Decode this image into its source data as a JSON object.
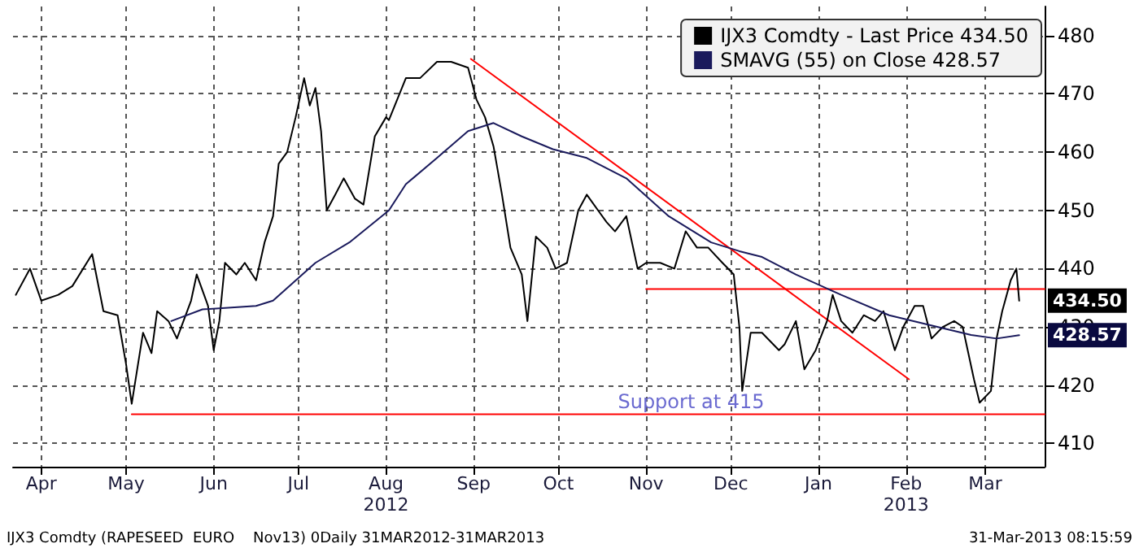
{
  "chart_data": {
    "type": "line",
    "xlim": [
      "2012-04-06",
      "2013-04-06"
    ],
    "xticks": [
      {
        "value": "2012-04-16",
        "label": "Apr"
      },
      {
        "value": "2012-05-16",
        "label": "May"
      },
      {
        "value": "2012-06-16",
        "label": "Jun"
      },
      {
        "value": "2012-07-16",
        "label": "Jul"
      },
      {
        "value": "2012-08-16",
        "label": "Aug\n2012"
      },
      {
        "value": "2012-09-16",
        "label": "Sep"
      },
      {
        "value": "2012-10-16",
        "label": "Oct"
      },
      {
        "value": "2012-11-16",
        "label": "Nov"
      },
      {
        "value": "2012-12-16",
        "label": "Dec"
      },
      {
        "value": "2013-01-16",
        "label": "Jan"
      },
      {
        "value": "2013-02-16",
        "label": "Feb\n2013"
      },
      {
        "value": "2013-03-16",
        "label": "Mar"
      }
    ],
    "ylim": [
      406,
      485
    ],
    "yticks": [
      410,
      420,
      430,
      440,
      450,
      460,
      470,
      480
    ],
    "grid": true,
    "legend": "top right",
    "marker": "none",
    "line_style": "solid",
    "series": [
      {
        "name": "IJX3 Comdty - Last Price 434.50",
        "color": "#000000",
        "x": [
          "2012-04-07",
          "2012-04-12",
          "2012-04-16",
          "2012-04-22",
          "2012-04-27",
          "2012-05-04",
          "2012-05-08",
          "2012-05-13",
          "2012-05-16",
          "2012-05-18",
          "2012-05-22",
          "2012-05-25",
          "2012-05-27",
          "2012-05-31",
          "2012-06-03",
          "2012-06-08",
          "2012-06-10",
          "2012-06-14",
          "2012-06-16",
          "2012-06-18",
          "2012-06-20",
          "2012-06-24",
          "2012-06-27",
          "2012-07-01",
          "2012-07-04",
          "2012-07-07",
          "2012-07-09",
          "2012-07-12",
          "2012-07-15",
          "2012-07-18",
          "2012-07-20",
          "2012-07-22",
          "2012-07-24",
          "2012-07-26",
          "2012-07-29",
          "2012-08-01",
          "2012-08-05",
          "2012-08-08",
          "2012-08-12",
          "2012-08-16",
          "2012-08-17",
          "2012-08-23",
          "2012-08-28",
          "2012-09-03",
          "2012-09-08",
          "2012-09-14",
          "2012-09-17",
          "2012-09-20",
          "2012-09-23",
          "2012-09-26",
          "2012-09-29",
          "2012-10-03",
          "2012-10-05",
          "2012-10-08",
          "2012-10-12",
          "2012-10-15",
          "2012-10-19",
          "2012-10-23",
          "2012-10-26",
          "2012-10-30",
          "2012-11-02",
          "2012-11-05",
          "2012-11-09",
          "2012-11-13",
          "2012-11-16",
          "2012-11-21",
          "2012-11-26",
          "2012-11-30",
          "2012-12-04",
          "2012-12-08",
          "2012-12-13",
          "2012-12-17",
          "2012-12-19",
          "2012-12-20",
          "2012-12-23",
          "2012-12-27",
          "2013-01-02",
          "2013-01-04",
          "2013-01-08",
          "2013-01-11",
          "2013-01-15",
          "2013-01-19",
          "2013-01-21",
          "2013-01-24",
          "2013-01-28",
          "2013-02-01",
          "2013-02-05",
          "2013-02-08",
          "2013-02-12",
          "2013-02-15",
          "2013-02-19",
          "2013-02-22",
          "2013-02-25",
          "2013-03-01",
          "2013-03-05",
          "2013-03-08",
          "2013-03-12",
          "2013-03-14",
          "2013-03-18",
          "2013-03-20",
          "2013-03-22",
          "2013-03-25",
          "2013-03-27",
          "2013-03-28"
        ],
        "values": [
          435.5,
          440,
          434.5,
          435.5,
          437,
          442.5,
          432.7,
          432,
          423.6,
          416.8,
          429,
          425.5,
          432.7,
          431,
          428,
          434.5,
          439,
          433.6,
          426,
          431,
          441,
          439,
          441,
          438,
          444.5,
          449,
          458,
          460,
          466,
          472.7,
          468,
          471,
          463.6,
          450,
          452.7,
          455.5,
          452,
          451,
          462.7,
          466,
          465.5,
          472.7,
          472.7,
          475.5,
          475.5,
          474.5,
          469,
          466,
          461,
          452.7,
          443.6,
          439,
          431,
          445.5,
          443.6,
          440,
          441,
          450,
          452.7,
          450,
          448,
          446.4,
          449,
          440,
          441,
          441,
          440,
          446.4,
          443.6,
          443.6,
          441,
          439,
          430,
          419,
          429,
          429,
          426,
          427,
          431,
          422.7,
          426,
          431,
          435.5,
          431,
          429,
          432,
          431,
          432.7,
          426,
          430,
          433.6,
          433.6,
          428,
          430,
          431,
          430,
          421,
          417,
          419,
          428,
          432.7,
          438,
          440,
          434.5
        ]
      },
      {
        "name": "SMAVG (55) on Close 428.57",
        "color": "#1a1a5c",
        "x": [
          "2012-06-01",
          "2012-06-12",
          "2012-07-01",
          "2012-07-07",
          "2012-07-22",
          "2012-08-03",
          "2012-08-17",
          "2012-08-23",
          "2012-09-03",
          "2012-09-14",
          "2012-09-23",
          "2012-10-03",
          "2012-10-14",
          "2012-10-26",
          "2012-11-09",
          "2012-11-24",
          "2012-12-09",
          "2012-12-19",
          "2012-12-27",
          "2013-01-08",
          "2013-01-24",
          "2013-02-10",
          "2013-02-27",
          "2013-03-11",
          "2013-03-20",
          "2013-03-28"
        ],
        "values": [
          431,
          433,
          433.6,
          434.5,
          441,
          444.5,
          450,
          454.5,
          459,
          463.6,
          465,
          462.7,
          460.5,
          459,
          455.5,
          449,
          444.5,
          443,
          442,
          439,
          435.5,
          432,
          430,
          428.6,
          428,
          428.57
        ]
      },
      {
        "color": "#ff0000",
        "x": [
          "2012-09-15",
          "2013-02-17"
        ],
        "values": [
          476,
          421
        ]
      },
      {
        "color": "#ff0000",
        "x": [
          "2012-11-16",
          "2013-04-06"
        ],
        "values": [
          436.5,
          436.5
        ]
      },
      {
        "color": "#ff0000",
        "x": [
          "2012-05-18",
          "2013-04-06"
        ],
        "values": [
          415,
          415
        ]
      }
    ],
    "annotations": [
      {
        "text": "Support at 415",
        "x": "2012-11-06",
        "y": 415
      },
      {
        "text": "434.50",
        "x": "2013-03-28",
        "y": 434.5
      },
      {
        "text": "428.57",
        "x": "2013-03-28",
        "y": 428.57
      },
      "IJX3 Comdty (RAPESEED  EURO    Nov13) 0Daily 31MAR2012-31MAR2013",
      "31-Mar-2013 08:15:59"
    ]
  }
}
